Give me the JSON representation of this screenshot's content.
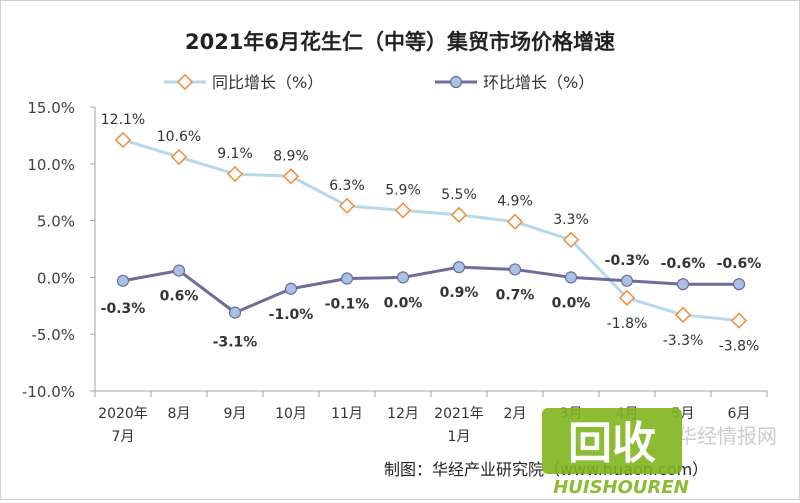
{
  "chart_data": {
    "type": "line",
    "title": "2021年6月花生仁（中等）集贸市场价格增速",
    "categories": [
      [
        "2020年",
        "7月"
      ],
      [
        "8月"
      ],
      [
        "9月"
      ],
      [
        "10月"
      ],
      [
        "11月"
      ],
      [
        "12月"
      ],
      [
        "2021年",
        "1月"
      ],
      [
        "2月"
      ],
      [
        "3月"
      ],
      [
        "4月"
      ],
      [
        "5月"
      ],
      [
        "6月"
      ]
    ],
    "series": [
      {
        "name": "同比增长（%）",
        "values": [
          12.1,
          10.6,
          9.1,
          8.9,
          6.3,
          5.9,
          5.5,
          4.9,
          3.3,
          -1.8,
          -3.3,
          -3.8
        ],
        "labels": [
          "12.1%",
          "10.6%",
          "9.1%",
          "8.9%",
          "6.3%",
          "5.9%",
          "5.5%",
          "4.9%",
          "3.3%",
          "-1.8%",
          "-3.3%",
          "-3.8%"
        ],
        "line_color": "#b7d7ea",
        "marker": "diamond",
        "marker_color": "#f08c3a"
      },
      {
        "name": "环比增长（%）",
        "values": [
          -0.3,
          0.6,
          -3.1,
          -1.0,
          -0.1,
          0.0,
          0.9,
          0.7,
          0.0,
          -0.3,
          -0.6,
          -0.6
        ],
        "labels": [
          "-0.3%",
          "0.6%",
          "-3.1%",
          "-1.0%",
          "-0.1%",
          "0.0%",
          "0.9%",
          "0.7%",
          "0.0%",
          "-0.3%",
          "-0.6%",
          "-0.6%"
        ],
        "line_color": "#6d6d9c",
        "marker": "circle",
        "marker_color": "#a9c2e2"
      }
    ],
    "ylim": [
      -10,
      15
    ],
    "yticks": [
      15,
      10,
      5,
      0,
      -5,
      -10
    ],
    "ytick_labels": [
      "15.0%",
      "10.0%",
      "5.0%",
      "0.0%",
      "-5.0%",
      "-10.0%"
    ],
    "legend_position": "top",
    "grid": false
  },
  "source": "制图：华经产业研究院（www.huaon.com）",
  "watermark": {
    "logo_text": "回收",
    "brand_text": "HUISHOUREN",
    "side_text": "华经情报网"
  },
  "colors": {
    "title": "#222222",
    "text": "#404040",
    "axis": "#a6a6a6",
    "logo_green": "#7fb51f"
  }
}
